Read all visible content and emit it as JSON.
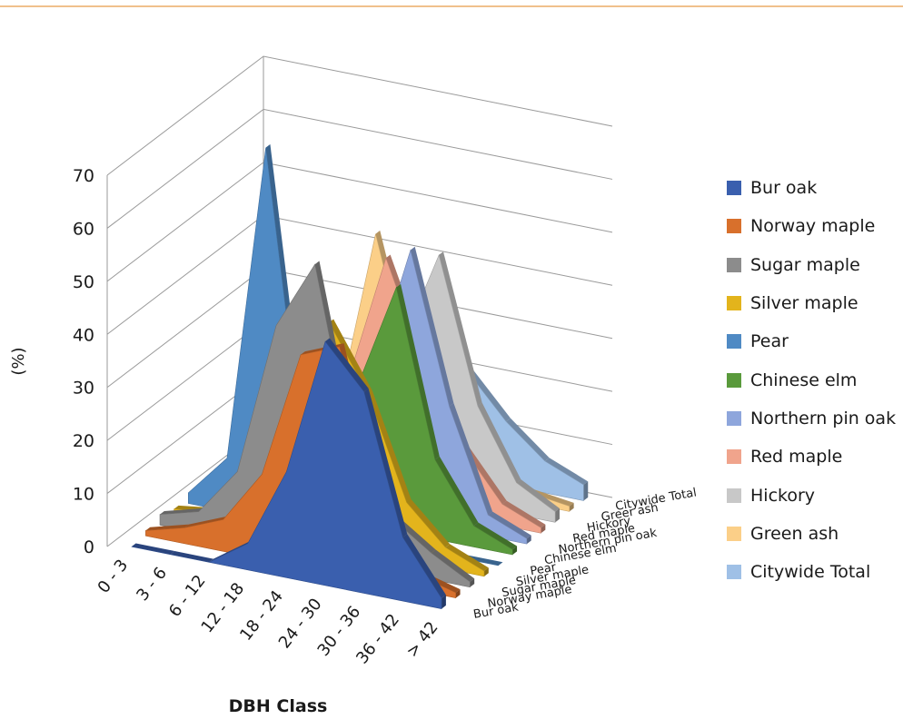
{
  "colors": {
    "Bur oak": "#3a5fae",
    "Norway maple": "#d8702c",
    "Sugar maple": "#8c8c8c",
    "Silver maple": "#e3b41c",
    "Pear": "#4f8ac4",
    "Chinese elm": "#5a9a3c",
    "Northern pin oak": "#8ea6dc",
    "Red maple": "#f0a48c",
    "Hickory": "#c8c8c8",
    "Green ash": "#fbcf88",
    "Citywide Total": "#9fc0e6"
  },
  "chart_data": {
    "type": "area",
    "xlabel": "DBH Class",
    "ylabel": "(%)",
    "ylim": [
      0,
      70
    ],
    "yticks": [
      "0",
      "10",
      "20",
      "30",
      "40",
      "50",
      "60",
      "70"
    ],
    "categories": [
      "0 - 3",
      "3 - 6",
      "6 - 12",
      "12 - 18",
      "18 - 24",
      "24 - 30",
      "30 - 36",
      "36 - 42",
      "> 42"
    ],
    "depth_labels": [
      "Bur oak",
      "Norway maple",
      "Sugar maple",
      "Silver maple",
      "Pear",
      "Chinese elm",
      "Northern pin oak",
      "Red maple",
      "Hickory",
      "Greer ash",
      "Citywide Total"
    ],
    "legend": [
      "Bur oak",
      "Norway maple",
      "Sugar maple",
      "Silver maple",
      "Pear",
      "Chinese elm",
      "Northern pin oak",
      "Red maple",
      "Hickory",
      "Green ash",
      "Citywide Total"
    ],
    "series": [
      {
        "name": "Bur oak",
        "values": [
          0,
          0,
          0,
          5,
          20,
          46,
          38,
          12,
          2
        ]
      },
      {
        "name": "Norway maple",
        "values": [
          1,
          3,
          6,
          16,
          40,
          43,
          14,
          3,
          1
        ]
      },
      {
        "name": "Sugar maple",
        "values": [
          2,
          4,
          13,
          42,
          55,
          20,
          10,
          5,
          1
        ]
      },
      {
        "name": "Silver maple",
        "values": [
          1,
          2,
          4,
          10,
          42,
          30,
          11,
          4,
          1
        ]
      },
      {
        "name": "Pear",
        "values": [
          2,
          10,
          70,
          12,
          3,
          1,
          0,
          0,
          0
        ]
      },
      {
        "name": "Chinese elm",
        "values": [
          1,
          3,
          7,
          15,
          26,
          46,
          15,
          4,
          1
        ]
      },
      {
        "name": "Northern pin oak",
        "values": [
          1,
          3,
          7,
          16,
          26,
          51,
          23,
          4,
          1
        ]
      },
      {
        "name": "Red maple",
        "values": [
          1,
          3,
          8,
          21,
          46,
          27,
          13,
          4,
          1
        ]
      },
      {
        "name": "Hickory",
        "values": [
          1,
          2,
          5,
          13,
          27,
          46,
          19,
          6,
          2
        ]
      },
      {
        "name": "Green ash",
        "values": [
          1,
          3,
          10,
          45,
          17,
          8,
          4,
          2,
          1
        ]
      },
      {
        "name": "Citywide Total",
        "values": [
          2,
          5,
          11,
          18,
          22,
          20,
          12,
          6,
          3
        ]
      }
    ],
    "legend_position": "right",
    "grid": true
  }
}
